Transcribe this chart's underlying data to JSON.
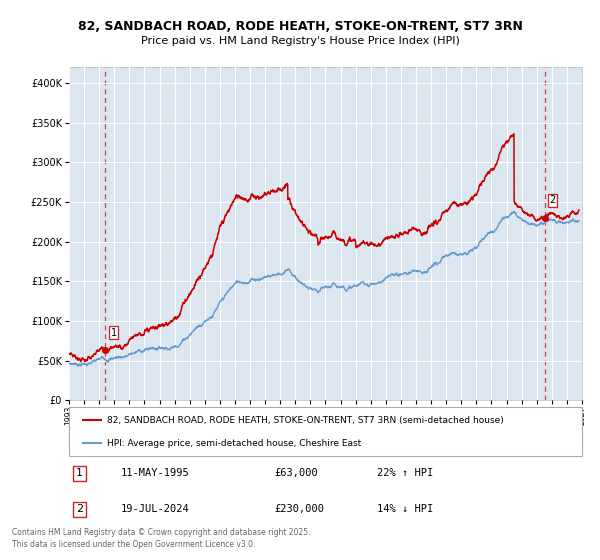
{
  "title1": "82, SANDBACH ROAD, RODE HEATH, STOKE-ON-TRENT, ST7 3RN",
  "title2": "Price paid vs. HM Land Registry's House Price Index (HPI)",
  "legend_line1": "82, SANDBACH ROAD, RODE HEATH, STOKE-ON-TRENT, ST7 3RN (semi-detached house)",
  "legend_line2": "HPI: Average price, semi-detached house, Cheshire East",
  "footnote": "Contains HM Land Registry data © Crown copyright and database right 2025.\nThis data is licensed under the Open Government Licence v3.0.",
  "point1_label": "1",
  "point1_date": "11-MAY-1995",
  "point1_price": "£63,000",
  "point1_hpi": "22% ↑ HPI",
  "point2_label": "2",
  "point2_date": "19-JUL-2024",
  "point2_price": "£230,000",
  "point2_hpi": "14% ↓ HPI",
  "sale1_year": 1995.36,
  "sale1_value": 63000,
  "sale2_year": 2024.55,
  "sale2_value": 230000,
  "red_color": "#cc0000",
  "blue_color": "#6699cc",
  "bg_color": "#dce6f0",
  "grid_color": "#ffffff",
  "dashed_color": "#cc0000",
  "ylim": [
    0,
    420000
  ],
  "xlim_start": 1993.0,
  "xlim_end": 2027.0
}
